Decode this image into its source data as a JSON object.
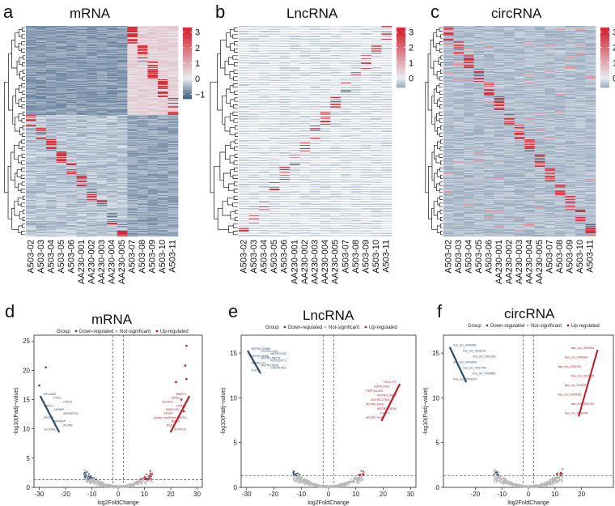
{
  "figure": {
    "panel_letters": [
      "a",
      "b",
      "c",
      "d",
      "e",
      "f"
    ]
  },
  "colors": {
    "low": "#3b5a7e",
    "mid": "#e8edf3",
    "high": "#d42b35",
    "down": "#2e4e6e",
    "notsig": "#b9b9b9",
    "up": "#b3202a"
  },
  "chart_data": [
    {
      "type": "heatmap",
      "title": "mRNA",
      "columns": [
        "A503-02",
        "A503-03",
        "A503-04",
        "A503-05",
        "A503-06",
        "AA230-001",
        "AA230-002",
        "AA230-003",
        "AA230-004",
        "AA230-005",
        "A503-07",
        "A503-08",
        "A503-09",
        "A503-10",
        "A503-11"
      ],
      "colorbar_ticks": [
        3,
        2,
        1,
        0,
        -1
      ],
      "colorbar_range": [
        -1.3,
        3.3
      ],
      "rows": 260,
      "clusters": [
        {
          "rows": [
            0,
            110
          ],
          "high_columns": [
            10,
            11,
            12,
            13,
            14
          ]
        },
        {
          "rows": [
            110,
            260
          ],
          "high_columns": [
            0,
            1,
            2,
            3,
            4,
            5,
            6,
            7,
            8,
            9
          ]
        }
      ]
    },
    {
      "type": "heatmap",
      "title": "LncRNA",
      "columns": [
        "A503-02",
        "A503-03",
        "A503-04",
        "A503-05",
        "A503-06",
        "AA230-001",
        "AA230-002",
        "AA230-003",
        "AA230-004",
        "AA230-005",
        "A503-07",
        "A503-08",
        "A503-09",
        "A503-10",
        "A503-11"
      ],
      "colorbar_ticks": [
        3,
        2,
        1,
        0
      ],
      "colorbar_range": [
        -0.6,
        3.3
      ],
      "rows": 260,
      "row_gaps": true
    },
    {
      "type": "heatmap",
      "title": "circRNA",
      "columns": [
        "A503-02",
        "A503-03",
        "A503-04",
        "A503-05",
        "A503-06",
        "AA230-001",
        "AA230-002",
        "AA230-003",
        "AA230-004",
        "AA230-005",
        "A503-07",
        "A503-08",
        "A503-09",
        "A503-10",
        "A503-11"
      ],
      "colorbar_ticks": [
        3,
        2,
        1,
        0
      ],
      "colorbar_range": [
        -0.6,
        3.3
      ],
      "rows": 260
    },
    {
      "type": "scatter",
      "title": "mRNA",
      "xlabel": "log2FoldChange",
      "ylabel": "-log10(Padj~value)",
      "xlim": [
        -32,
        32
      ],
      "ylim": [
        0,
        26
      ],
      "xticks": [
        -30,
        -20,
        -10,
        0,
        10,
        20,
        30
      ],
      "yticks": [
        0,
        5,
        10,
        15,
        20,
        25
      ],
      "legend": {
        "title": "Group",
        "items": [
          "Down-regulated",
          "Not-significant",
          "Up-regulated"
        ]
      },
      "vlines": [
        -2,
        2
      ],
      "hline": 1.3,
      "down_line": {
        "x": [
          -29.5,
          -22.5
        ],
        "y": [
          15.5,
          9.5
        ]
      },
      "up_line": {
        "x": [
          20,
          27
        ],
        "y": [
          9.5,
          15.5
        ]
      },
      "down_labels": [
        "RPL2A20",
        "FXD1",
        "CHD11",
        "MRPL4",
        "GNRHR",
        "ARHGEF15",
        "MYO10",
        "ARHGAP",
        "ACO09",
        "SLC2A11"
      ],
      "up_labels": [
        "MMP13",
        "SPIB3",
        "HOXA13",
        "CMTA5",
        "MARCHF1",
        "PFN7P",
        "human_readGene_10919",
        "TBX20",
        "IDO1",
        "MTHFD2"
      ]
    },
    {
      "type": "scatter",
      "title": "LncRNA",
      "xlabel": "log2FoldChange",
      "ylabel": "-log10(Padj~value)",
      "xlim": [
        -32,
        32
      ],
      "ylim": [
        0,
        17
      ],
      "xticks": [
        -30,
        -20,
        -10,
        0,
        10,
        20,
        30
      ],
      "yticks": [
        0,
        5,
        10,
        15
      ],
      "legend": {
        "title": "Group",
        "items": [
          "Down-regulated",
          "Not-significant",
          "Up-regulated"
        ]
      },
      "vlines": [
        -2,
        2
      ],
      "hline": 1.3,
      "down_line": {
        "x": [
          -29.5,
          -25
        ],
        "y": [
          15.2,
          12.8
        ]
      },
      "up_line": {
        "x": [
          19.5,
          26
        ],
        "y": [
          7.5,
          11.5
        ]
      },
      "down_labels": [
        "MSTRG.23985",
        "SYCE1L-AS1",
        "MSTRG.502",
        "MSTRG.8488",
        "MSTRG.58276",
        "AC010247.3",
        "MSTRG.24",
        "MSTRG.5645",
        "CASP8-AS1",
        "DUC1"
      ],
      "up_labels": [
        "HCK1-IT1",
        "FOXD1-AS1",
        "PEPP2A-AS1",
        "MSTRG.29825",
        "MSTRG.77651",
        "MSTRG.8029",
        "MSTRG.18156",
        "FGD1.5",
        "MSTRG.5190"
      ]
    },
    {
      "type": "scatter",
      "title": "circRNA",
      "xlabel": "log2FoldChange",
      "ylabel": "-log10(Padj~value)",
      "xlim": [
        -32,
        32
      ],
      "ylim": [
        0,
        17
      ],
      "xticks": [
        -20,
        -10,
        0,
        10,
        20
      ],
      "yticks": [
        0,
        5,
        10,
        15
      ],
      "legend": {
        "title": "Group",
        "items": [
          "Down-regulated",
          "Not-significant",
          "Up-regulated"
        ]
      },
      "vlines": [
        -2,
        2
      ],
      "hline": 1.3,
      "down_line": {
        "x": [
          -29.5,
          -23.5
        ],
        "y": [
          15.6,
          11.8
        ]
      },
      "up_line": {
        "x": [
          19,
          26
        ],
        "y": [
          8,
          15.3
        ]
      },
      "down_labels": [
        "hsa_circ_0005262",
        "hsa_circ_0006191",
        "hsa_circ_0002431",
        "hsa_circ_0003840",
        "hsa_circ_0007346",
        "hsa_circ_0005567",
        "hsa_circ_0006234"
      ],
      "up_labels": [
        "hsa_circ_0009934",
        "hsa_circ_0009960",
        "hsa_circ_0001030",
        "hsa_circ_0007895",
        "hsa_circ_0000029",
        "hsa_circ_0000026",
        "hsa_circ_0003760",
        "hsa_circ_0009748"
      ]
    }
  ]
}
